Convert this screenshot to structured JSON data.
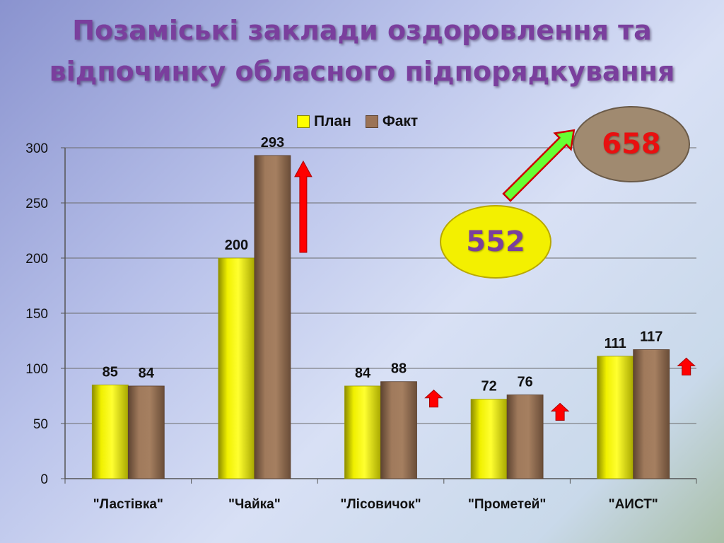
{
  "title": {
    "line1": "Позаміські заклади оздоровлення та",
    "line2": "відпочинку обласного підпорядкування"
  },
  "legend": {
    "plan": "План",
    "fact": "Факт"
  },
  "totals": {
    "plan": "552",
    "fact": "658"
  },
  "colors": {
    "plan": "#ffff00",
    "fact": "#9b7356",
    "up_arrow": "#ff0000",
    "growth_arrow": "#66ff33",
    "title": "#7a3f9d"
  },
  "chart_data": {
    "type": "bar",
    "categories": [
      "\"Ластівка\"",
      "\"Чайка\"",
      "\"Лісовичок\"",
      "\"Прометей\"",
      "\"АИСТ\""
    ],
    "series": [
      {
        "name": "План",
        "values": [
          85,
          200,
          84,
          72,
          111
        ]
      },
      {
        "name": "Факт",
        "values": [
          84,
          293,
          88,
          76,
          117
        ]
      }
    ],
    "ylim": [
      0,
      300
    ],
    "yticks": [
      0,
      50,
      100,
      150,
      200,
      250,
      300
    ],
    "grid": true,
    "legend_position": "top",
    "growth_markers": [
      false,
      true,
      true,
      true,
      true
    ]
  }
}
